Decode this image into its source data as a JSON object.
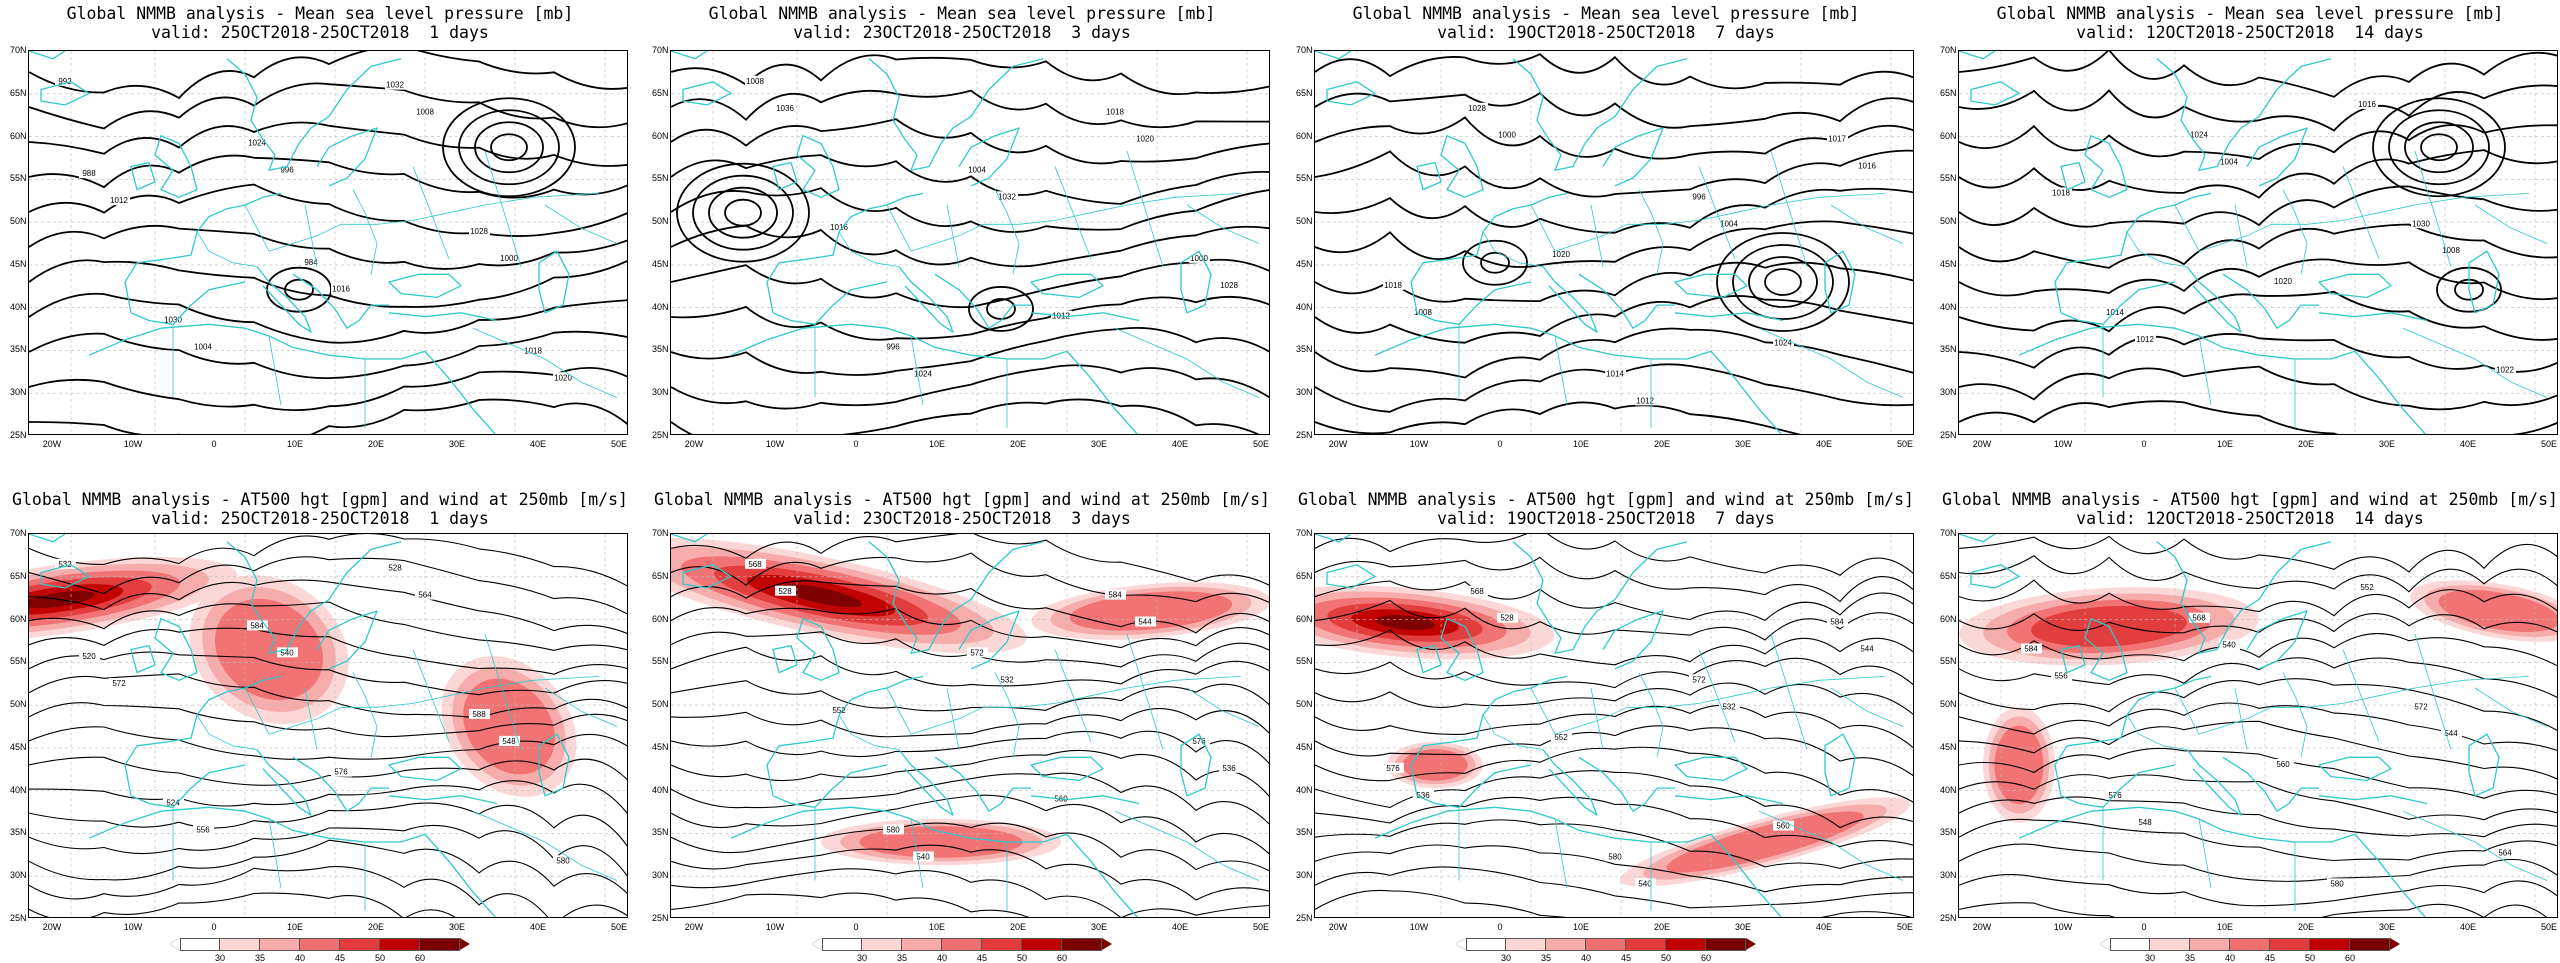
{
  "top_panels": [
    {
      "title": "Global NMMB analysis - Mean sea level pressure [mb]",
      "valid": "valid: 25OCT2018-25OCT2018  1 days"
    },
    {
      "title": "Global NMMB analysis - Mean sea level pressure [mb]",
      "valid": "valid: 23OCT2018-25OCT2018  3 days"
    },
    {
      "title": "Global NMMB analysis - Mean sea level pressure [mb]",
      "valid": "valid: 19OCT2018-25OCT2018  7 days"
    },
    {
      "title": "Global NMMB analysis - Mean sea level pressure [mb]",
      "valid": "valid: 12OCT2018-25OCT2018  14 days"
    }
  ],
  "bottom_panels": [
    {
      "title": "Global NMMB analysis - AT500 hgt [gpm] and wind at 250mb [m/s]",
      "valid": "valid: 25OCT2018-25OCT2018  1 days"
    },
    {
      "title": "Global NMMB analysis - AT500 hgt [gpm] and wind at 250mb [m/s]",
      "valid": "valid: 23OCT2018-25OCT2018  3 days"
    },
    {
      "title": "Global NMMB analysis - AT500 hgt [gpm] and wind at 250mb [m/s]",
      "valid": "valid: 19OCT2018-25OCT2018  7 days"
    },
    {
      "title": "Global NMMB analysis - AT500 hgt [gpm] and wind at 250mb [m/s]",
      "valid": "valid: 12OCT2018-25OCT2018  14 days"
    }
  ],
  "lat_labels": [
    "70N",
    "65N",
    "60N",
    "55N",
    "50N",
    "45N",
    "40N",
    "35N",
    "30N",
    "25N"
  ],
  "lon_labels": [
    "20W",
    "10W",
    "0",
    "10E",
    "20E",
    "30E",
    "40E",
    "50E"
  ],
  "colorbar": {
    "ticks": [
      "30",
      "35",
      "40",
      "45",
      "50",
      "60"
    ],
    "colors": [
      "#ffffff",
      "#fcd5d5",
      "#f7aaaa",
      "#f07070",
      "#e23b3b",
      "#c00000",
      "#7a0000"
    ]
  },
  "colors": {
    "coast": "#2ec9c9",
    "contour": "#000000",
    "grid": "#bbbbbb"
  },
  "isobar_labels": [
    [
      "992",
      "996",
      "1000",
      "1004",
      "1008",
      "1012",
      "1016",
      "1020",
      "1024",
      "1028",
      "1030",
      "1032",
      "988",
      "984",
      "1018"
    ],
    [
      "1036",
      "1032",
      "1028",
      "1024",
      "1020",
      "1016",
      "1012",
      "1008",
      "1004",
      "1000",
      "996",
      "1018"
    ],
    [
      "1000",
      "1004",
      "1008",
      "1012",
      "1016",
      "1020",
      "1024",
      "1028",
      "996",
      "1018",
      "1014",
      "1017"
    ],
    [
      "1004",
      "1008",
      "1012",
      "1016",
      "1018",
      "1020",
      "1022",
      "1024",
      "1030",
      "1014"
    ]
  ],
  "height_labels": [
    [
      "532",
      "540",
      "548",
      "556",
      "564",
      "572",
      "576",
      "580",
      "584",
      "588",
      "524",
      "528",
      "520"
    ],
    [
      "528",
      "532",
      "536",
      "540",
      "544",
      "552",
      "560",
      "568",
      "572",
      "576",
      "580",
      "584"
    ],
    [
      "528",
      "532",
      "536",
      "540",
      "544",
      "552",
      "560",
      "568",
      "572",
      "576",
      "580",
      "584"
    ],
    [
      "540",
      "544",
      "548",
      "552",
      "556",
      "560",
      "564",
      "568",
      "572",
      "576",
      "580",
      "584"
    ]
  ]
}
